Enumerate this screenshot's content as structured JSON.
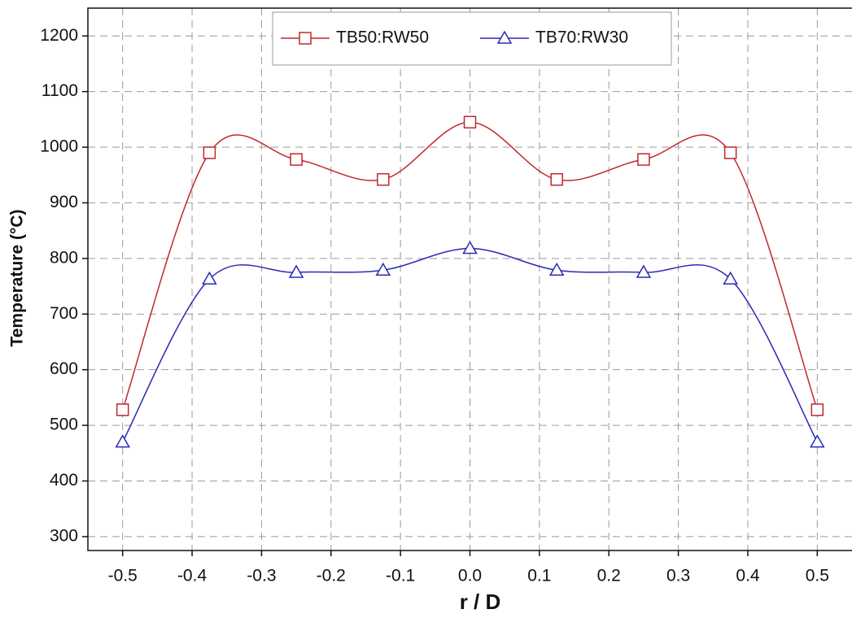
{
  "chart_data": {
    "type": "line",
    "x_label": "r / D",
    "y_label": "Temperature (°C)",
    "x": [
      -0.5,
      -0.375,
      -0.25,
      -0.125,
      0,
      0.125,
      0.25,
      0.375,
      0.5
    ],
    "series": [
      {
        "name": "TB50:RW50",
        "color": "#c0282a",
        "marker": "square",
        "values": [
          528,
          990,
          978,
          942,
          1045,
          942,
          978,
          990,
          528
        ]
      },
      {
        "name": "TB70:RW30",
        "color": "#2a2ab4",
        "marker": "triangle",
        "values": [
          470,
          763,
          775,
          779,
          818,
          779,
          775,
          763,
          470
        ]
      }
    ],
    "xlim": [
      -0.55,
      0.55
    ],
    "xticks": [
      -0.5,
      -0.4,
      -0.3,
      -0.2,
      -0.1,
      {
        "value": 0,
        "label": "0.0"
      },
      0.1,
      0.2,
      0.3,
      0.4,
      0.5
    ],
    "ylim": [
      275,
      1250
    ],
    "yticks": [
      300,
      400,
      500,
      600,
      700,
      800,
      900,
      1000,
      1100,
      1200
    ],
    "grid": true,
    "legend": "top"
  }
}
